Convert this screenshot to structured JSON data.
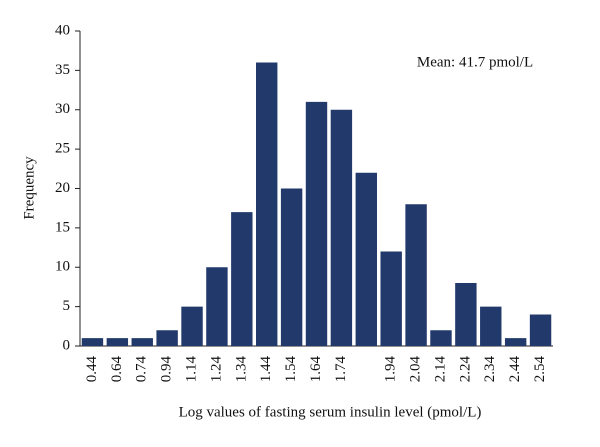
{
  "chart_data": {
    "type": "bar",
    "annotation": "Mean: 41.7 pmol/L",
    "x_label": "Log values of fasting serum insulin level (pmol/L)",
    "y_label": "Frequency",
    "categories": [
      "0.44",
      "0.64",
      "0.74",
      "0.94",
      "1.14",
      "1.24",
      "1.34",
      "1.44",
      "1.54",
      "1.64",
      "1.74",
      null,
      "1.94",
      "2.04",
      "2.14",
      "2.24",
      "2.34",
      "2.44",
      "2.54"
    ],
    "values": [
      1,
      1,
      1,
      2,
      5,
      10,
      17,
      36,
      20,
      31,
      30,
      22,
      12,
      18,
      2,
      8,
      5,
      1,
      4
    ],
    "color": "#223a6b",
    "ylim": [
      0,
      40
    ],
    "yticks": [
      0,
      5,
      10,
      15,
      20,
      25,
      30,
      35,
      40
    ],
    "grid": false
  }
}
